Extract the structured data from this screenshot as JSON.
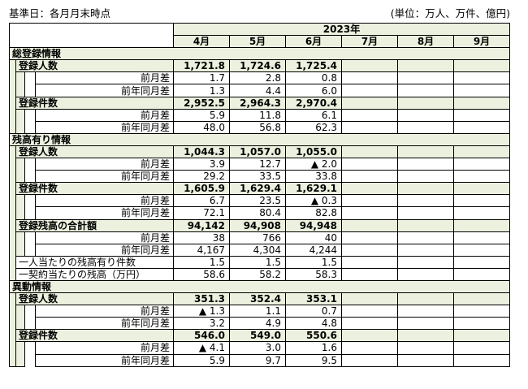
{
  "notes": {
    "left": "基準日：各月月末時点",
    "right": "(単位：万人、万件、億円)"
  },
  "header": {
    "year": "2023年",
    "months": [
      "4月",
      "5月",
      "6月",
      "7月",
      "8月",
      "9月"
    ]
  },
  "sections": [
    {
      "title": "総登録情報",
      "groups": [
        {
          "label": "登録人数",
          "values": [
            "1,721.8",
            "1,724.6",
            "1,725.4"
          ],
          "subs": [
            {
              "label": "前月差",
              "values": [
                "1.7",
                "2.8",
                "0.8"
              ]
            },
            {
              "label": "前年同月差",
              "values": [
                "1.3",
                "4.4",
                "6.0"
              ]
            }
          ]
        },
        {
          "label": "登録件数",
          "values": [
            "2,952.5",
            "2,964.3",
            "2,970.4"
          ],
          "subs": [
            {
              "label": "前月差",
              "values": [
                "5.9",
                "11.8",
                "6.1"
              ]
            },
            {
              "label": "前年同月差",
              "values": [
                "48.0",
                "56.8",
                "62.3"
              ]
            }
          ]
        }
      ]
    },
    {
      "title": "残高有り情報",
      "groups": [
        {
          "label": "登録人数",
          "values": [
            "1,044.3",
            "1,057.0",
            "1,055.0"
          ],
          "subs": [
            {
              "label": "前月差",
              "values": [
                "3.9",
                "12.7",
                "▲ 2.0"
              ]
            },
            {
              "label": "前年同月差",
              "values": [
                "29.2",
                "33.5",
                "33.8"
              ]
            }
          ]
        },
        {
          "label": "登録件数",
          "values": [
            "1,605.9",
            "1,629.4",
            "1,629.1"
          ],
          "subs": [
            {
              "label": "前月差",
              "values": [
                "6.7",
                "23.5",
                "▲ 0.3"
              ]
            },
            {
              "label": "前年同月差",
              "values": [
                "72.1",
                "80.4",
                "82.8"
              ]
            }
          ]
        },
        {
          "label": "登録残高の合計額",
          "values": [
            "94,142",
            "94,908",
            "94,948"
          ],
          "subs": [
            {
              "label": "前月差",
              "values": [
                "38",
                "766",
                "40"
              ]
            },
            {
              "label": "前年同月差",
              "values": [
                "4,167",
                "4,304",
                "4,244"
              ]
            }
          ]
        }
      ],
      "extra": [
        {
          "label": "一人当たりの残高有り件数",
          "values": [
            "1.5",
            "1.5",
            "1.5"
          ]
        },
        {
          "label": "一契約当たりの残高（万円）",
          "values": [
            "58.6",
            "58.2",
            "58.3"
          ]
        }
      ]
    },
    {
      "title": "異動情報",
      "groups": [
        {
          "label": "登録人数",
          "values": [
            "351.3",
            "352.4",
            "353.1"
          ],
          "subs": [
            {
              "label": "前月差",
              "values": [
                "▲ 1.3",
                "1.1",
                "0.7"
              ]
            },
            {
              "label": "前年同月差",
              "values": [
                "3.2",
                "4.9",
                "4.8"
              ]
            }
          ]
        },
        {
          "label": "登録件数",
          "values": [
            "546.0",
            "549.0",
            "550.6"
          ],
          "subs": [
            {
              "label": "前月差",
              "values": [
                "▲ 4.1",
                "3.0",
                "1.6"
              ]
            },
            {
              "label": "前年同月差",
              "values": [
                "5.9",
                "9.7",
                "9.5"
              ]
            }
          ]
        }
      ]
    }
  ]
}
